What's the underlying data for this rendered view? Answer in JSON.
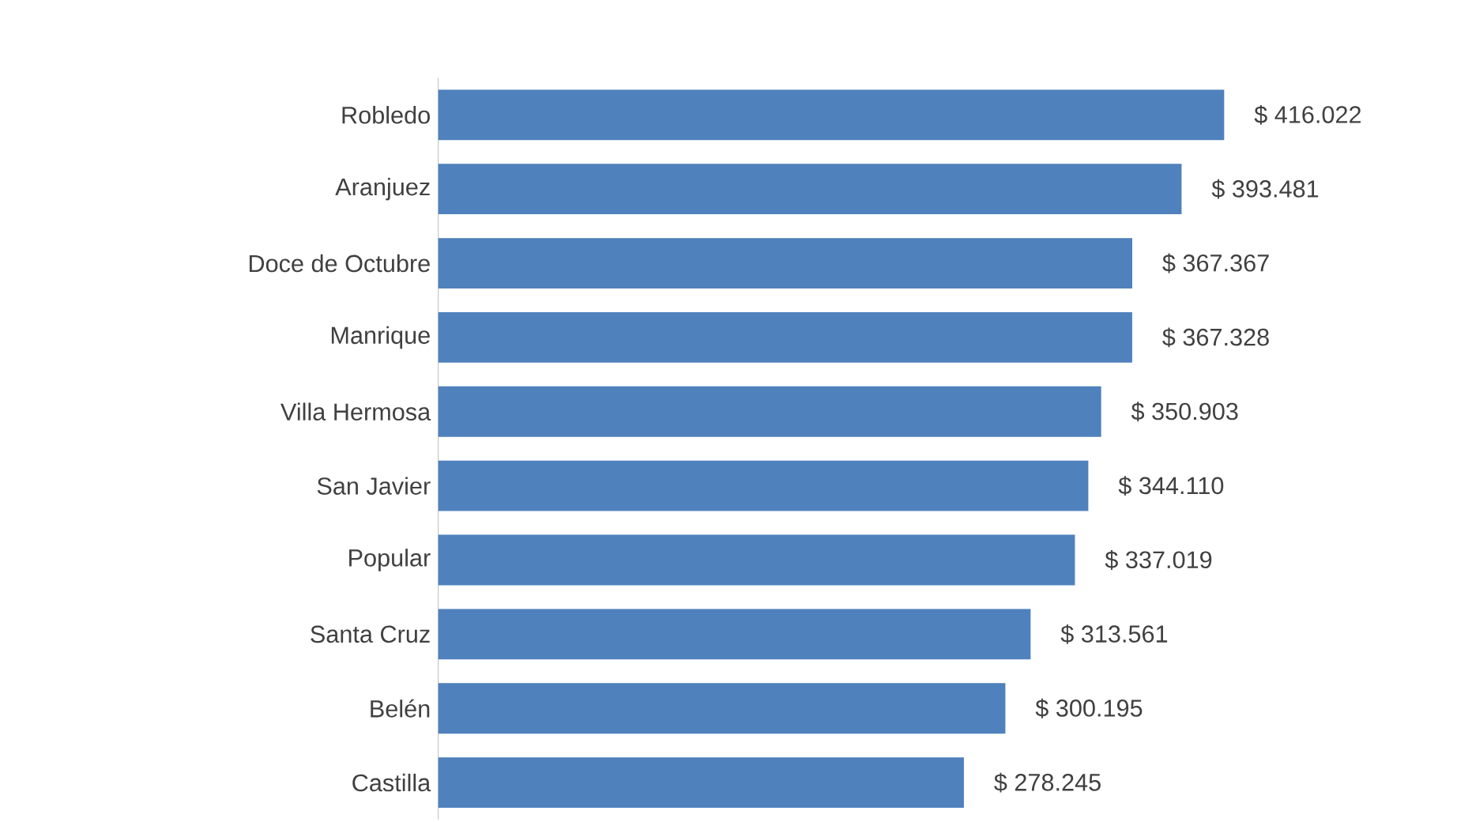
{
  "chart_data": {
    "type": "bar",
    "orientation": "horizontal",
    "categories": [
      "Robledo",
      "Aranjuez",
      "Doce de Octubre",
      "Manrique",
      "Villa Hermosa",
      "San Javier",
      "Popular",
      "Santa Cruz",
      "Belén",
      "Castilla"
    ],
    "values": [
      416022,
      393481,
      367367,
      367328,
      350903,
      344110,
      337019,
      313561,
      300195,
      278245
    ],
    "value_labels": [
      "$ 416.022",
      "$ 393.481",
      "$ 367.367",
      "$ 367.328",
      "$ 350.903",
      "$ 344.110",
      "$ 337.019",
      "$ 313.561",
      "$ 300.195",
      "$ 278.245"
    ],
    "color": "#4f81bd",
    "tick_labels": "y"
  }
}
